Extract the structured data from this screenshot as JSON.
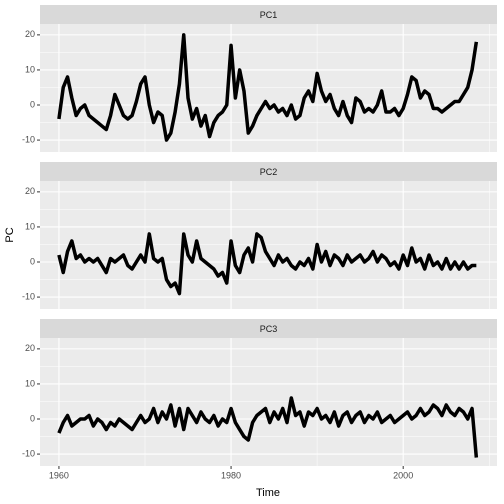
{
  "chart_data": {
    "type": "line",
    "facet": true,
    "grid": true,
    "xlabel": "Time",
    "ylabel": "PC",
    "x": [
      1960,
      1960.5,
      1961,
      1961.5,
      1962,
      1962.5,
      1963,
      1963.5,
      1964,
      1964.5,
      1965,
      1965.5,
      1966,
      1966.5,
      1967,
      1967.5,
      1968,
      1968.5,
      1969,
      1969.5,
      1970,
      1970.5,
      1971,
      1971.5,
      1972,
      1972.5,
      1973,
      1973.5,
      1974,
      1974.5,
      1975,
      1975.5,
      1976,
      1976.5,
      1977,
      1977.5,
      1978,
      1978.5,
      1979,
      1979.5,
      1980,
      1980.5,
      1981,
      1981.5,
      1982,
      1982.5,
      1983,
      1983.5,
      1984,
      1984.5,
      1985,
      1985.5,
      1986,
      1986.5,
      1987,
      1987.5,
      1988,
      1988.5,
      1989,
      1989.5,
      1990,
      1990.5,
      1991,
      1991.5,
      1992,
      1992.5,
      1993,
      1993.5,
      1994,
      1994.5,
      1995,
      1995.5,
      1996,
      1996.5,
      1997,
      1997.5,
      1998,
      1998.5,
      1999,
      1999.5,
      2000,
      2000.5,
      2001,
      2001.5,
      2002,
      2002.5,
      2003,
      2003.5,
      2004,
      2004.5,
      2005,
      2005.5,
      2006,
      2006.5,
      2007,
      2007.5,
      2008,
      2008.5
    ],
    "series": [
      {
        "name": "PC1",
        "color": "#000000",
        "values": [
          -4,
          5,
          8,
          2,
          -3,
          -1,
          0,
          -3,
          -4,
          -5,
          -6,
          -7,
          -3,
          3,
          0,
          -3,
          -4,
          -3,
          1,
          6,
          8,
          0,
          -5,
          -2,
          -3,
          -10,
          -8,
          -2,
          6,
          20,
          2,
          -4,
          -1,
          -6,
          -3,
          -9,
          -5,
          -3,
          -2,
          0,
          17,
          2,
          10,
          4,
          -8,
          -6,
          -3,
          -1,
          1,
          -1,
          0,
          -2,
          -1,
          -3,
          0,
          -4,
          -3,
          2,
          4,
          1,
          9,
          4,
          1,
          3,
          -1,
          -3,
          1,
          -3,
          -5,
          2,
          1,
          -2,
          -1,
          -2,
          0,
          4,
          -2,
          -2,
          -1,
          -3,
          -1,
          3,
          8,
          7,
          2,
          4,
          3,
          -1,
          -1,
          -2,
          -1,
          0,
          1,
          1,
          3,
          5,
          10,
          18
        ]
      },
      {
        "name": "PC2",
        "color": "#000000",
        "values": [
          2,
          -3,
          3,
          6,
          1,
          2,
          0,
          1,
          0,
          1,
          -1,
          -3,
          1,
          0,
          1,
          2,
          -1,
          -2,
          0,
          2,
          0,
          8,
          1,
          0,
          1,
          -5,
          -7,
          -6,
          -9,
          8,
          2,
          0,
          6,
          1,
          0,
          -1,
          -2,
          -4,
          -3,
          -6,
          6,
          -1,
          -3,
          2,
          4,
          0,
          8,
          7,
          3,
          1,
          -1,
          2,
          0,
          1,
          -1,
          -2,
          0,
          -1,
          1,
          -2,
          5,
          0,
          3,
          -1,
          2,
          1,
          -1,
          2,
          0,
          1,
          2,
          0,
          1,
          3,
          0,
          2,
          1,
          -1,
          0,
          -2,
          2,
          -1,
          4,
          0,
          1,
          -2,
          2,
          -1,
          0,
          -2,
          1,
          -2,
          0,
          -2,
          0,
          -2,
          -1,
          -1
        ]
      },
      {
        "name": "PC3",
        "color": "#000000",
        "values": [
          -4,
          -1,
          1,
          -2,
          -1,
          0,
          0,
          1,
          -2,
          0,
          -1,
          -3,
          -1,
          -2,
          0,
          -1,
          -2,
          -3,
          -1,
          1,
          -1,
          0,
          3,
          -1,
          2,
          0,
          4,
          -2,
          3,
          -3,
          3,
          1,
          -1,
          2,
          0,
          -1,
          1,
          -2,
          0,
          -1,
          3,
          -1,
          -3,
          -5,
          -6,
          -1,
          1,
          2,
          3,
          -1,
          2,
          0,
          3,
          -1,
          6,
          1,
          2,
          -2,
          2,
          1,
          3,
          0,
          1,
          -1,
          2,
          -2,
          1,
          2,
          -1,
          1,
          2,
          -1,
          1,
          0,
          2,
          -1,
          0,
          1,
          -1,
          0,
          1,
          2,
          0,
          1,
          3,
          1,
          2,
          4,
          3,
          1,
          4,
          2,
          1,
          3,
          2,
          0,
          3,
          -11
        ]
      }
    ],
    "xlim": [
      1957.8,
      2010.9
    ],
    "xticks": [
      1960,
      1980,
      2000
    ],
    "ylim": [
      -13.4,
      23.1
    ],
    "yticks": [
      -10,
      0,
      10,
      20
    ]
  }
}
